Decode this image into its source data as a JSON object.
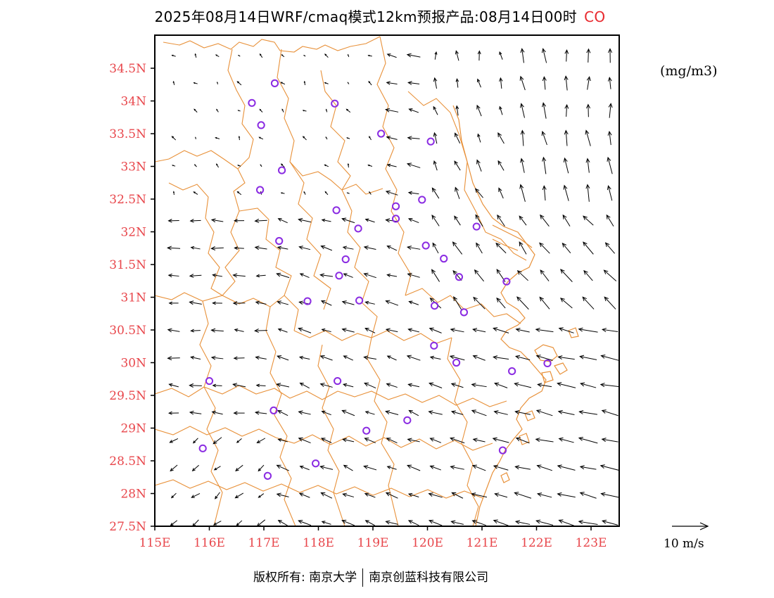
{
  "title": "2025年08月14日WRF/cmaq模式12km预报产品:08月14日00时",
  "species": "CO",
  "unit": "(mg/m3)",
  "lat_labels": [
    "34.5N",
    "34N",
    "33.5N",
    "33N",
    "32.5N",
    "32N",
    "31.5N",
    "31N",
    "30.5N",
    "30N",
    "29.5N",
    "29N",
    "28.5N",
    "28N",
    "27.5N"
  ],
  "lon_labels": [
    "115E",
    "116E",
    "117E",
    "118E",
    "119E",
    "120E",
    "121E",
    "122E",
    "123E"
  ],
  "wind_reference_label": "10 m/s",
  "footer": {
    "left": "版权所有: 南京大学",
    "right": "南京创蓝科技有限公司"
  },
  "colors": {
    "axis_labels": "#e8474c",
    "boundary": "#e8913a",
    "station": "#8a2be2",
    "wind": "#000000"
  },
  "stations": [
    {
      "lon": 117.2,
      "lat": 34.27
    },
    {
      "lon": 116.78,
      "lat": 33.97
    },
    {
      "lon": 118.3,
      "lat": 33.96
    },
    {
      "lon": 116.95,
      "lat": 33.63
    },
    {
      "lon": 119.15,
      "lat": 33.5
    },
    {
      "lon": 120.06,
      "lat": 33.38
    },
    {
      "lon": 117.33,
      "lat": 32.94
    },
    {
      "lon": 116.93,
      "lat": 32.64
    },
    {
      "lon": 119.9,
      "lat": 32.49
    },
    {
      "lon": 119.42,
      "lat": 32.39
    },
    {
      "lon": 118.33,
      "lat": 32.33
    },
    {
      "lon": 119.42,
      "lat": 32.2
    },
    {
      "lon": 118.73,
      "lat": 32.05
    },
    {
      "lon": 120.9,
      "lat": 32.08
    },
    {
      "lon": 117.28,
      "lat": 31.86
    },
    {
      "lon": 119.97,
      "lat": 31.79
    },
    {
      "lon": 118.5,
      "lat": 31.58
    },
    {
      "lon": 120.3,
      "lat": 31.59
    },
    {
      "lon": 118.38,
      "lat": 31.33
    },
    {
      "lon": 120.58,
      "lat": 31.31
    },
    {
      "lon": 121.45,
      "lat": 31.24
    },
    {
      "lon": 117.8,
      "lat": 30.94
    },
    {
      "lon": 118.75,
      "lat": 30.95
    },
    {
      "lon": 120.13,
      "lat": 30.87
    },
    {
      "lon": 120.67,
      "lat": 30.77
    },
    {
      "lon": 120.12,
      "lat": 30.26
    },
    {
      "lon": 120.53,
      "lat": 30.0
    },
    {
      "lon": 121.55,
      "lat": 29.87
    },
    {
      "lon": 122.2,
      "lat": 29.99
    },
    {
      "lon": 116.0,
      "lat": 29.72
    },
    {
      "lon": 118.35,
      "lat": 29.72
    },
    {
      "lon": 117.18,
      "lat": 29.27
    },
    {
      "lon": 118.88,
      "lat": 28.96
    },
    {
      "lon": 119.63,
      "lat": 29.12
    },
    {
      "lon": 115.88,
      "lat": 28.69
    },
    {
      "lon": 121.38,
      "lat": 28.66
    },
    {
      "lon": 117.95,
      "lat": 28.46
    },
    {
      "lon": 117.07,
      "lat": 28.27
    }
  ],
  "wind_field": {
    "lon_start": 115.35,
    "lon_step": 0.4,
    "lat_start": 27.55,
    "lat_step": 0.42,
    "reference_speed_ms": 10
  }
}
